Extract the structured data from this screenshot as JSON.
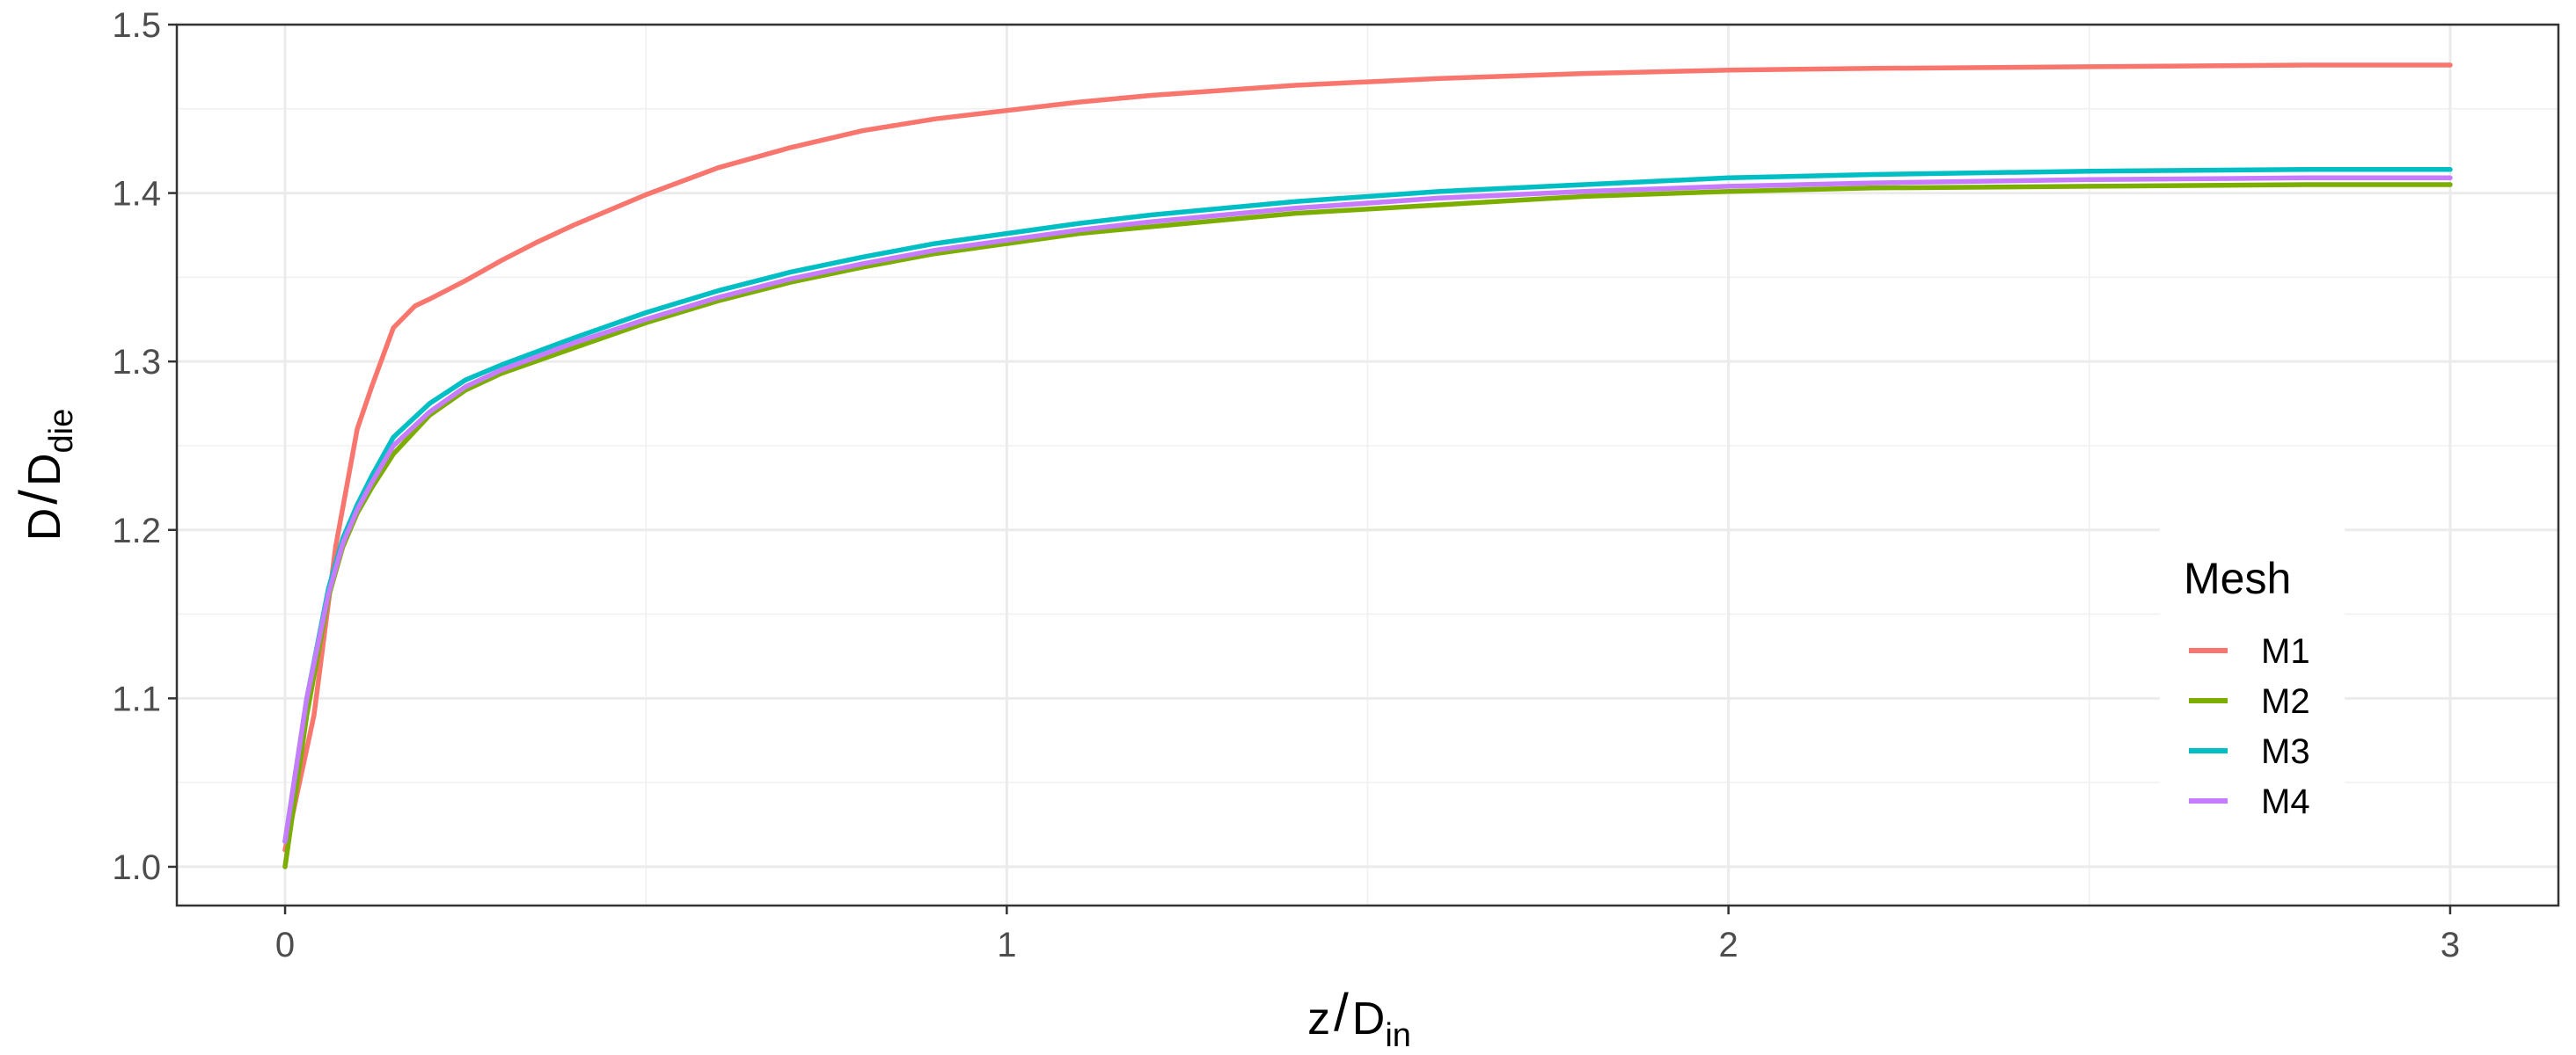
{
  "chart_data": {
    "type": "line",
    "xlabel": {
      "main": "z",
      "sub": "in",
      "base": "D",
      "sep": "/"
    },
    "ylabel": {
      "main": "D",
      "sub": "die",
      "base": "D",
      "sep": "/"
    },
    "xlim": [
      -0.15,
      3.15
    ],
    "ylim": [
      0.977,
      1.5
    ],
    "x_ticks": [
      0,
      1,
      2,
      3
    ],
    "x_tick_labels": [
      "0",
      "1",
      "2",
      "3"
    ],
    "y_ticks": [
      1.0,
      1.1,
      1.2,
      1.3,
      1.4,
      1.5
    ],
    "y_tick_labels": [
      "1.0",
      "1.1",
      "1.2",
      "1.3",
      "1.4",
      "1.5"
    ],
    "grid": true,
    "legend": {
      "title": "Mesh",
      "position": "right-inside-bottom"
    },
    "series": [
      {
        "name": "M1",
        "color": "#F8766D",
        "x": [
          0,
          0.04,
          0.07,
          0.1,
          0.12,
          0.15,
          0.18,
          0.2,
          0.25,
          0.3,
          0.35,
          0.4,
          0.5,
          0.6,
          0.7,
          0.8,
          0.9,
          1.0,
          1.1,
          1.2,
          1.3,
          1.4,
          1.5,
          1.6,
          1.8,
          2.0,
          2.2,
          2.5,
          2.8,
          3.0
        ],
        "y": [
          1.01,
          1.09,
          1.19,
          1.26,
          1.285,
          1.32,
          1.333,
          1.337,
          1.348,
          1.36,
          1.371,
          1.381,
          1.399,
          1.415,
          1.427,
          1.437,
          1.444,
          1.449,
          1.454,
          1.458,
          1.461,
          1.464,
          1.466,
          1.468,
          1.471,
          1.473,
          1.474,
          1.475,
          1.476,
          1.476
        ]
      },
      {
        "name": "M2",
        "color": "#7CAE00",
        "x": [
          0,
          0.03,
          0.06,
          0.08,
          0.1,
          0.12,
          0.15,
          0.2,
          0.25,
          0.3,
          0.4,
          0.5,
          0.6,
          0.7,
          0.8,
          0.9,
          1.0,
          1.1,
          1.2,
          1.4,
          1.6,
          1.8,
          2.0,
          2.2,
          2.5,
          2.8,
          3.0
        ],
        "y": [
          1.0,
          1.09,
          1.16,
          1.19,
          1.21,
          1.225,
          1.245,
          1.268,
          1.283,
          1.293,
          1.308,
          1.323,
          1.336,
          1.347,
          1.356,
          1.364,
          1.37,
          1.376,
          1.38,
          1.388,
          1.393,
          1.398,
          1.401,
          1.403,
          1.404,
          1.405,
          1.405
        ]
      },
      {
        "name": "M3",
        "color": "#00BFC4",
        "x": [
          0,
          0.03,
          0.06,
          0.08,
          0.1,
          0.12,
          0.15,
          0.2,
          0.25,
          0.3,
          0.4,
          0.5,
          0.6,
          0.7,
          0.8,
          0.9,
          1.0,
          1.1,
          1.2,
          1.4,
          1.6,
          1.8,
          2.0,
          2.2,
          2.5,
          2.8,
          3.0
        ],
        "y": [
          1.015,
          1.1,
          1.165,
          1.195,
          1.215,
          1.232,
          1.255,
          1.275,
          1.289,
          1.298,
          1.314,
          1.329,
          1.342,
          1.353,
          1.362,
          1.37,
          1.376,
          1.382,
          1.387,
          1.395,
          1.401,
          1.405,
          1.409,
          1.411,
          1.413,
          1.414,
          1.414
        ]
      },
      {
        "name": "M4",
        "color": "#C77CFF",
        "x": [
          0,
          0.03,
          0.06,
          0.08,
          0.1,
          0.12,
          0.15,
          0.2,
          0.25,
          0.3,
          0.4,
          0.5,
          0.6,
          0.7,
          0.8,
          0.9,
          1.0,
          1.1,
          1.2,
          1.4,
          1.6,
          1.8,
          2.0,
          2.2,
          2.5,
          2.8,
          3.0
        ],
        "y": [
          1.015,
          1.1,
          1.162,
          1.192,
          1.212,
          1.228,
          1.25,
          1.27,
          1.285,
          1.295,
          1.311,
          1.325,
          1.338,
          1.349,
          1.358,
          1.366,
          1.372,
          1.378,
          1.383,
          1.391,
          1.397,
          1.401,
          1.404,
          1.406,
          1.408,
          1.409,
          1.409
        ]
      }
    ]
  }
}
